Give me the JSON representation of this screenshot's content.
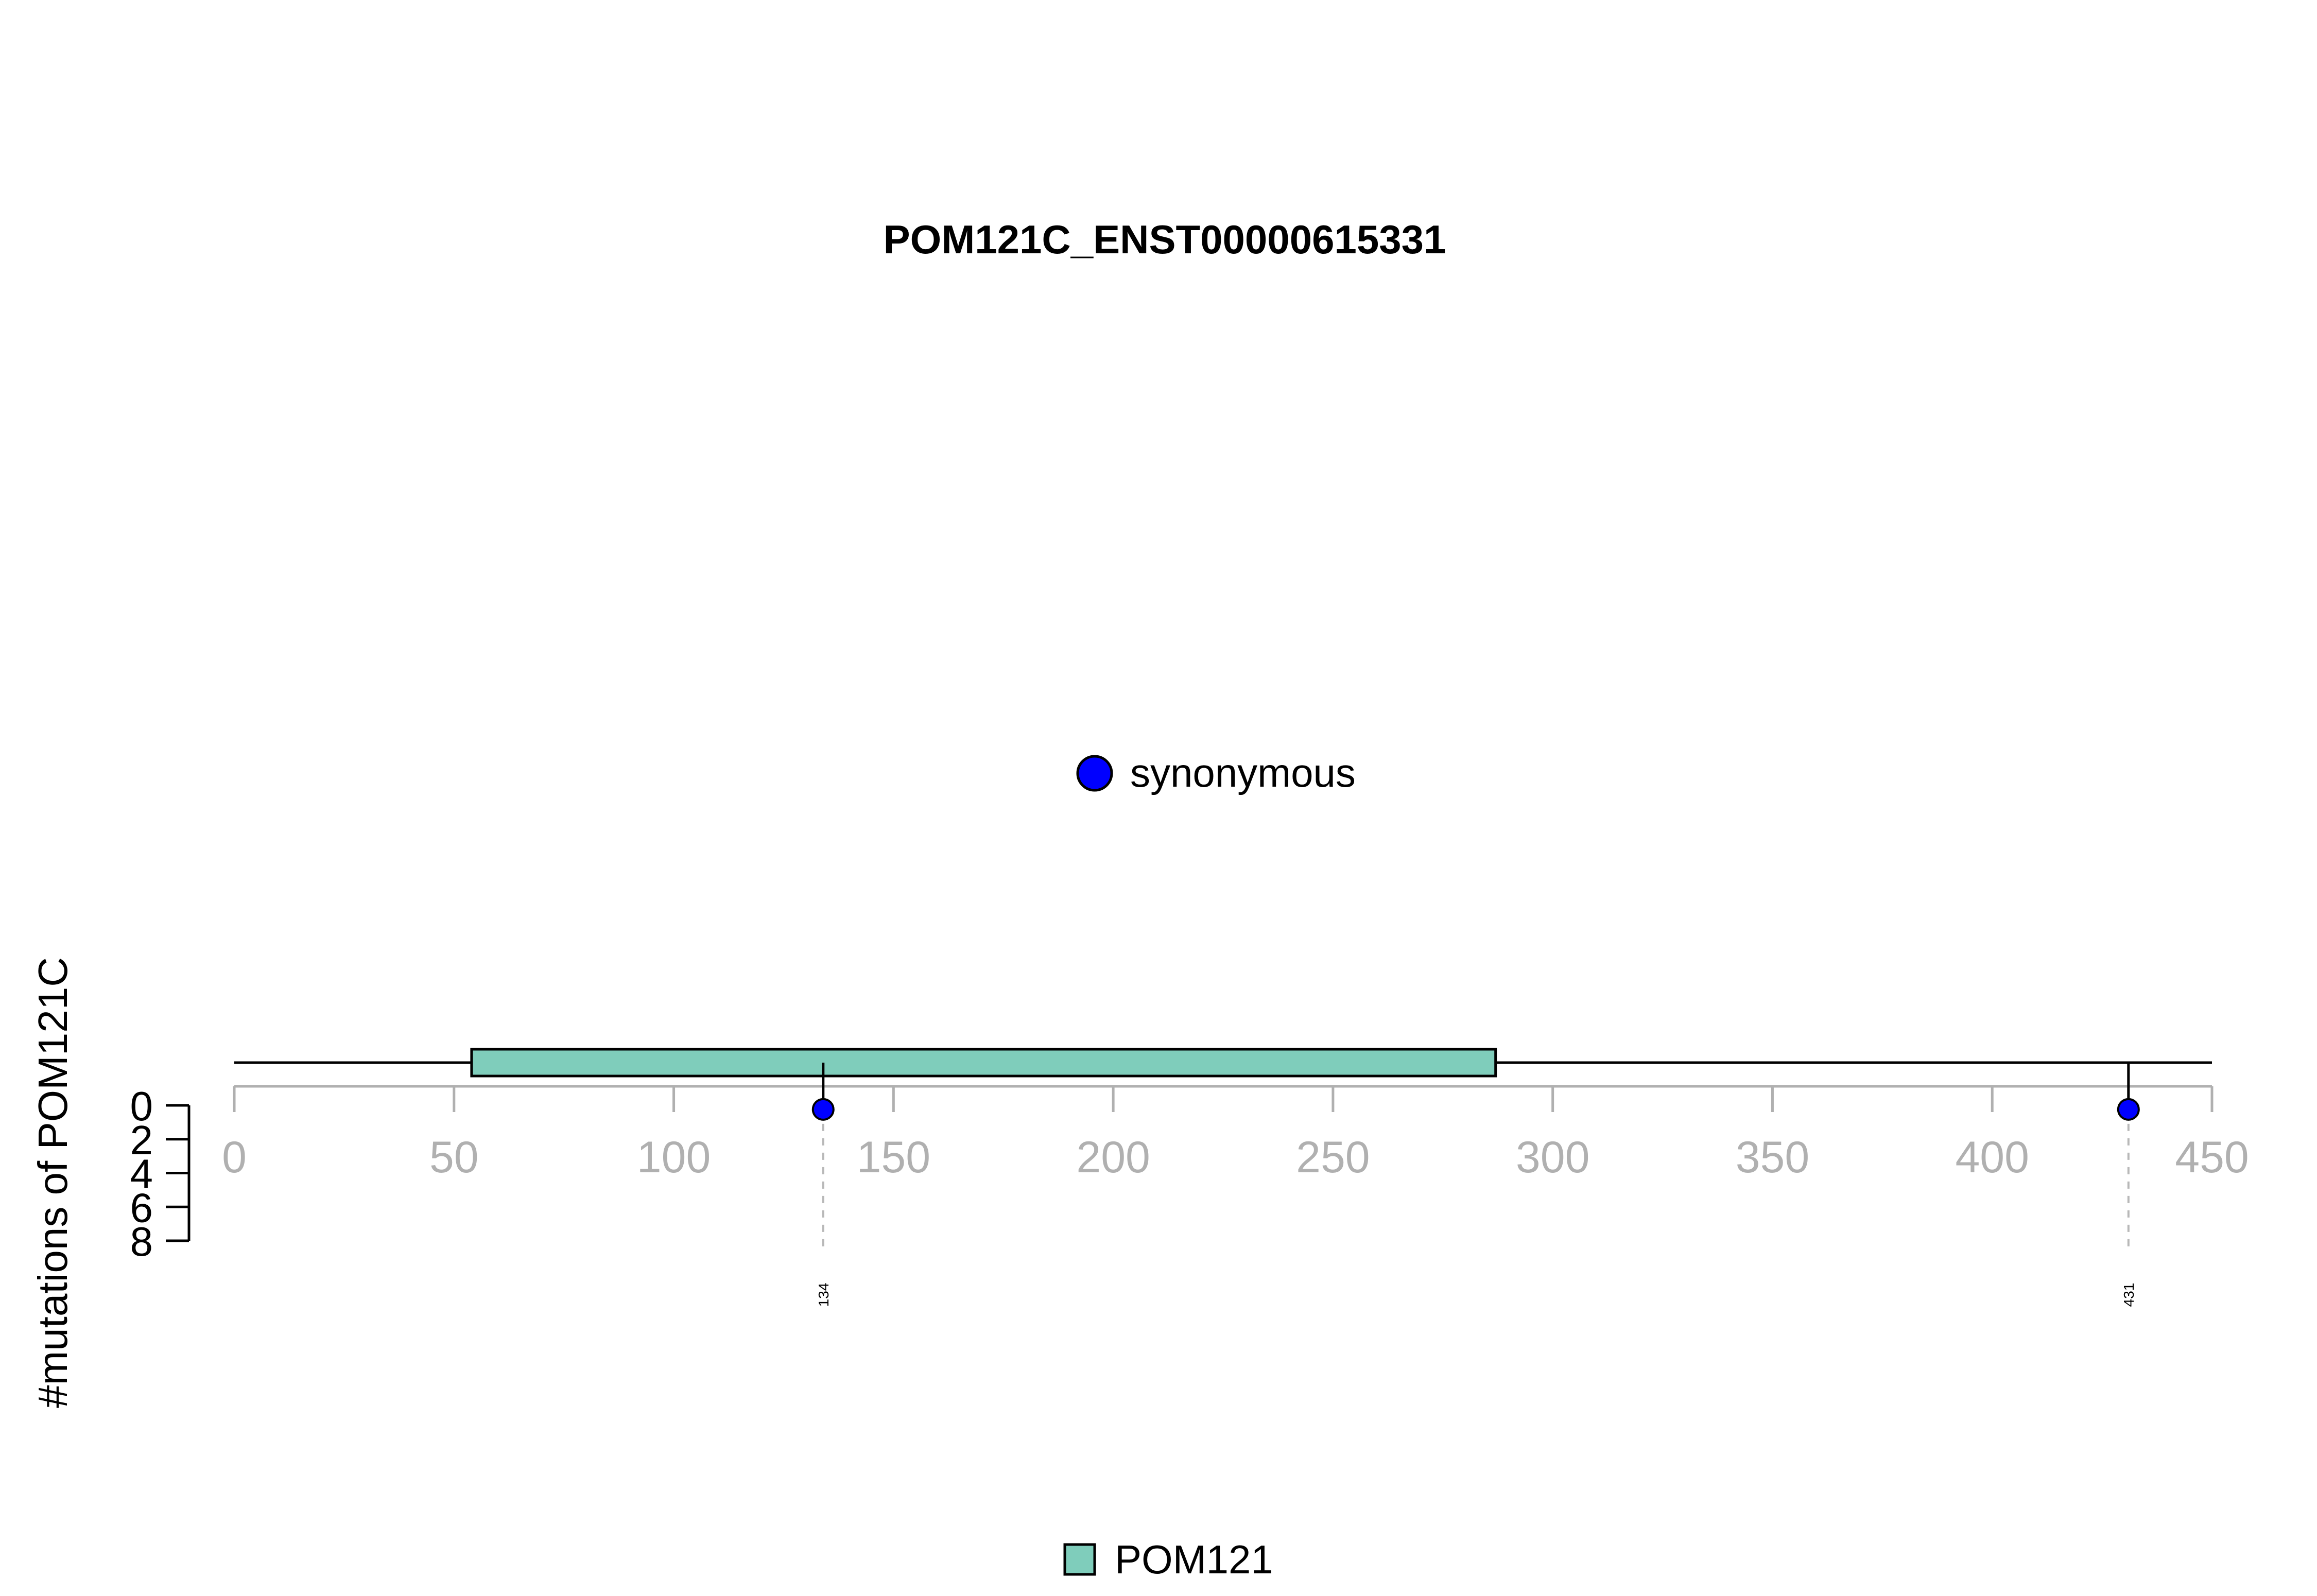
{
  "chart_data": {
    "type": "lollipop",
    "title": "POM121C_ENST00000615331",
    "ylabel": "#mutations of POM121C",
    "xlim": [
      0,
      450
    ],
    "x_ticks": [
      0,
      50,
      100,
      150,
      200,
      250,
      300,
      350,
      400,
      450
    ],
    "x_tick_labels": [
      "0",
      "50",
      "100",
      "150",
      "200",
      "250",
      "300",
      "350",
      "400",
      "450"
    ],
    "y_ticks": [
      0,
      2,
      4,
      6,
      8
    ],
    "y_tick_labels": [
      "0",
      "2",
      "4",
      "6",
      "8"
    ],
    "ylim": [
      0,
      8
    ],
    "protein_length": 450,
    "domains": [
      {
        "name": "POM121",
        "start": 54,
        "end": 287,
        "color": "#7fcdbb"
      }
    ],
    "mutations": [
      {
        "position": 134,
        "label": "134",
        "count": 1,
        "type": "synonymous",
        "color": "#0000ff"
      },
      {
        "position": 431,
        "label": "431",
        "count": 1,
        "type": "synonymous",
        "color": "#0000ff"
      }
    ],
    "legend_mutation_types": [
      {
        "label": "synonymous",
        "color": "#0000ff"
      }
    ],
    "legend_domains": [
      {
        "label": "POM121",
        "color": "#7fcdbb"
      }
    ],
    "grid": false
  }
}
